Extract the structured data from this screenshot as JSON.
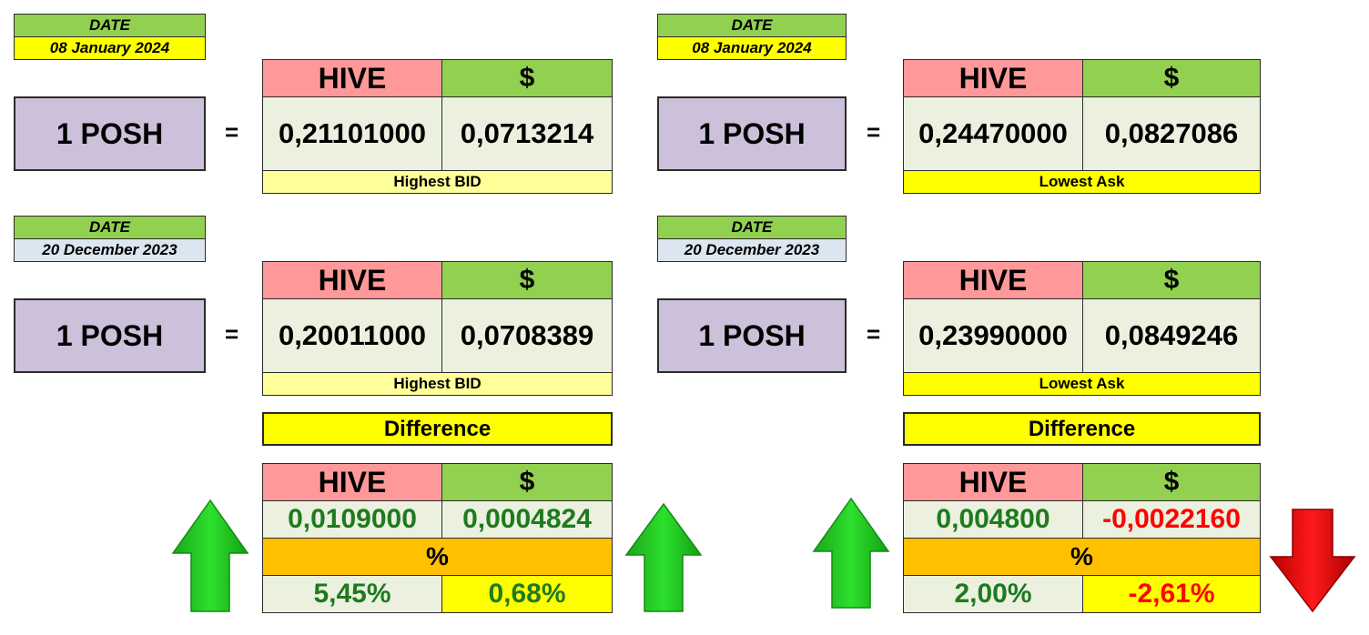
{
  "panels": [
    {
      "top": {
        "date_label": "DATE",
        "date": "08 January 2024",
        "unit": "1 POSH",
        "equals": "=",
        "hive_header": "HIVE",
        "usd_header": "$",
        "hive_value": "0,21101000",
        "usd_value": "0,0713214",
        "label": "Highest BID"
      },
      "bottom": {
        "date_label": "DATE",
        "date": "20 December 2023",
        "unit": "1 POSH",
        "equals": "=",
        "hive_header": "HIVE",
        "usd_header": "$",
        "hive_value": "0,20011000",
        "usd_value": "0,0708389",
        "label": "Highest BID"
      },
      "difference": {
        "title": "Difference",
        "hive_header": "HIVE",
        "usd_header": "$",
        "hive_value": "0,0109000",
        "usd_value": "0,0004824",
        "pct_header": "%",
        "hive_pct": "5,45%",
        "usd_pct": "0,68%"
      }
    },
    {
      "top": {
        "date_label": "DATE",
        "date": "08 January 2024",
        "unit": "1 POSH",
        "equals": "=",
        "hive_header": "HIVE",
        "usd_header": "$",
        "hive_value": "0,24470000",
        "usd_value": "0,0827086",
        "label": "Lowest Ask"
      },
      "bottom": {
        "date_label": "DATE",
        "date": "20 December 2023",
        "unit": "1 POSH",
        "equals": "=",
        "hive_header": "HIVE",
        "usd_header": "$",
        "hive_value": "0,23990000",
        "usd_value": "0,0849246",
        "label": "Lowest Ask"
      },
      "difference": {
        "title": "Difference",
        "hive_header": "HIVE",
        "usd_header": "$",
        "hive_value": "0,004800",
        "usd_value": "-0,0022160",
        "pct_header": "%",
        "hive_pct": "2,00%",
        "usd_pct": "-2,61%"
      }
    }
  ],
  "icons": {
    "up": "up-arrow-icon",
    "down": "down-arrow-icon"
  },
  "colors": {
    "hive_header": "#ff9999",
    "usd_header": "#92d050",
    "value_bg": "#ebf1de",
    "posh_bg": "#ccc0da",
    "highlight": "#ffff00",
    "percent_header": "#ffc000",
    "positive_text": "#1f7a1f",
    "negative_text": "#ff0000",
    "up_arrow": "#22c422",
    "down_arrow": "#e00000"
  }
}
